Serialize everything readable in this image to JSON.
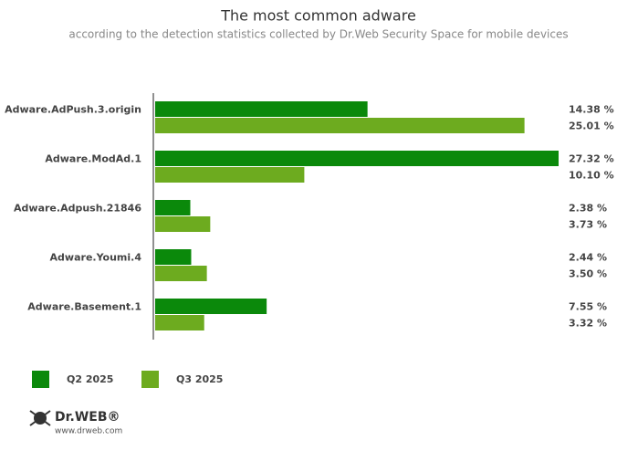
{
  "chart_data": {
    "type": "bar",
    "orientation": "horizontal",
    "title": "The most common adware",
    "subtitle": "according to the detection statistics collected by Dr.Web Security Space for mobile devices",
    "categories": [
      "Adware.AdPush.3.origin",
      "Adware.ModAd.1",
      "Adware.Adpush.21846",
      "Adware.Youmi.4",
      "Adware.Basement.1"
    ],
    "series": [
      {
        "name": "Q2 2025",
        "color": "#0b890b",
        "values": [
          14.38,
          27.32,
          2.38,
          2.44,
          7.55
        ],
        "value_labels": [
          "14.38 %",
          "27.32 %",
          "2.38 %",
          "2.44 %",
          "7.55 %"
        ]
      },
      {
        "name": "Q3 2025",
        "color": "#6dab1f",
        "values": [
          25.01,
          10.1,
          3.73,
          3.5,
          3.32
        ],
        "value_labels": [
          "25.01 %",
          "10.10 %",
          "3.73 %",
          "3.50 %",
          "3.32 %"
        ]
      }
    ]
  },
  "footer": {
    "logo": "Dr.WEB®",
    "url": "www.drweb.com"
  }
}
